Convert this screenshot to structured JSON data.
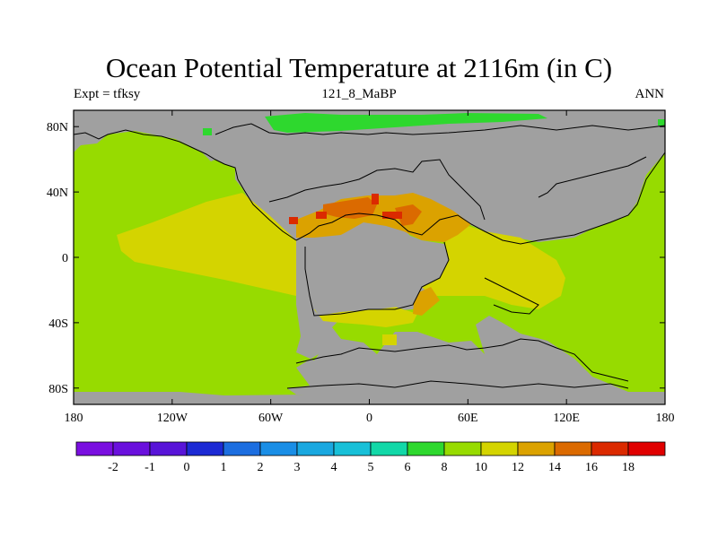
{
  "title": "Ocean Potential Temperature at 2116m (in C)",
  "subtitle_left": "Expt = tfksy",
  "subtitle_center": "121_8_MaBP",
  "subtitle_right": "ANN",
  "colors": {
    "land": "#a0a0a0",
    "c6_8": "#2ed82e",
    "c8_10": "#97db00",
    "c10_12": "#d4d400",
    "c12_14": "#dba200",
    "c14_16": "#db6a00",
    "c16_18": "#db2a00"
  },
  "chart_data": {
    "type": "heatmap",
    "projection": "cylindrical-equidistant",
    "x_range": [
      -180,
      180
    ],
    "y_range": [
      -90,
      90
    ],
    "x_ticks": [
      "180",
      "120W",
      "60W",
      "0",
      "60E",
      "120E",
      "180"
    ],
    "y_ticks": [
      "80N",
      "40N",
      "0",
      "40S",
      "80S"
    ],
    "colorbar": {
      "labels": [
        "-2",
        "-1",
        "0",
        "1",
        "2",
        "3",
        "4",
        "5",
        "6",
        "8",
        "10",
        "12",
        "14",
        "16",
        "18"
      ],
      "colors": [
        "#7a0fe0",
        "#6a10dd",
        "#5814d8",
        "#1c2ad4",
        "#1c6ee0",
        "#1a8ee6",
        "#1aa8e0",
        "#18c0d8",
        "#12d8a8",
        "#2ed82e",
        "#97db00",
        "#d4d400",
        "#dba200",
        "#db6a00",
        "#db2a00",
        "#e00000"
      ]
    }
  }
}
